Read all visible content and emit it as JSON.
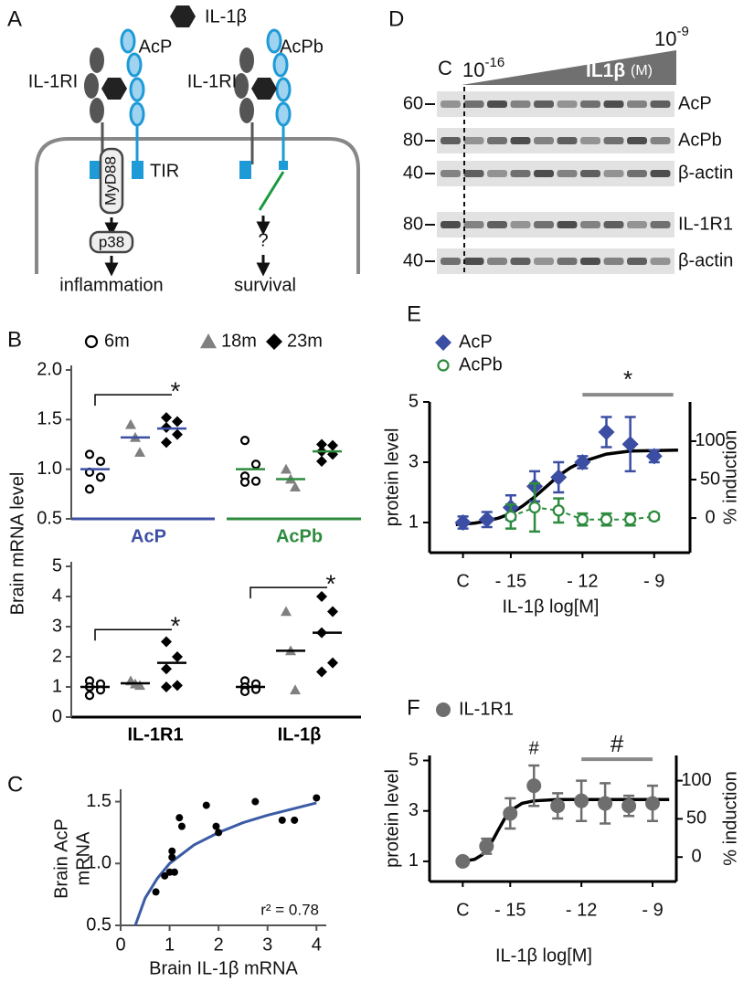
{
  "panel_labels": [
    "A",
    "B",
    "C",
    "D",
    "E",
    "F"
  ],
  "diagram": {
    "ligand": "IL-1β",
    "left": {
      "receptor": "IL-1RI",
      "coreceptor": "AcP",
      "adaptor": "MyD88",
      "domain": "TIR",
      "kinase": "p38",
      "outcome": "inflammation"
    },
    "right": {
      "receptor": "IL-1RI",
      "coreceptor": "AcPb",
      "unknown": "?",
      "outcome": "survival"
    }
  },
  "blot": {
    "control": "C",
    "low": {
      "base": "10",
      "exp": "-16"
    },
    "high": {
      "base": "10",
      "exp": "-9"
    },
    "treatment": "IL1β",
    "unit": "(M)",
    "rows": [
      {
        "marker": 60,
        "label": "AcP"
      },
      {
        "marker": 80,
        "label": "AcPb"
      },
      {
        "marker": 40,
        "label": "β-actin"
      },
      {
        "marker": 80,
        "label": "IL-1R1"
      },
      {
        "marker": 40,
        "label": "β-actin"
      }
    ]
  },
  "b_ylabel": "Brain mRNA level",
  "chart_data": [
    {
      "type": "strip",
      "label": "AcP",
      "color": "#3b4ea3",
      "ylim": [
        0.5,
        2.0
      ],
      "yticks": [
        {
          "value": 0.5,
          "label": "0.5"
        },
        {
          "value": 1,
          "label": "1.0"
        },
        {
          "value": 1.5,
          "label": "1.5"
        },
        {
          "value": 2,
          "label": "2.0"
        }
      ],
      "series": [
        {
          "name": "6m",
          "marker": "open-circle",
          "color": "#000000",
          "values": [
            1.15,
            1.08,
            0.97,
            0.92,
            0.8
          ],
          "mean": 1.0
        },
        {
          "name": "18m",
          "marker": "triangle",
          "color": "#808080",
          "values": [
            1.45,
            1.32,
            1.17
          ],
          "mean": 1.32
        },
        {
          "name": "23m",
          "marker": "diamond",
          "color": "#000000",
          "values": [
            1.52,
            1.48,
            1.42,
            1.35,
            1.27
          ],
          "mean": 1.41
        }
      ],
      "bracket": {
        "y": 1.75,
        "text": "*"
      }
    },
    {
      "type": "strip",
      "label": "AcPb",
      "color": "#2e8b3e",
      "ylim": [
        0.5,
        2.0
      ],
      "series": [
        {
          "marker": "open-circle",
          "color": "#000000",
          "values": [
            1.29,
            1.05,
            0.93,
            0.88,
            0.87
          ],
          "mean": 1.0
        },
        {
          "marker": "triangle",
          "color": "#808080",
          "values": [
            1.0,
            0.9,
            0.82
          ],
          "mean": 0.9
        },
        {
          "marker": "diamond",
          "color": "#000000",
          "values": [
            1.25,
            1.24,
            1.18,
            1.15,
            1.08
          ],
          "mean": 1.18
        }
      ]
    },
    {
      "type": "strip",
      "label": "IL-1R1",
      "color": "#000000",
      "ylim": [
        0,
        5
      ],
      "yticks": [
        0,
        1,
        2,
        3,
        4,
        5
      ],
      "series": [
        {
          "marker": "open-circle",
          "color": "#000000",
          "values": [
            1.2,
            1.1,
            1.0,
            0.9,
            0.72
          ],
          "mean": 1.0
        },
        {
          "marker": "triangle",
          "color": "#808080",
          "values": [
            1.2,
            1.1,
            1.05
          ],
          "mean": 1.12
        },
        {
          "marker": "diamond",
          "color": "#000000",
          "values": [
            2.5,
            2.0,
            1.6,
            1.05,
            1.0
          ],
          "mean": 1.8
        }
      ],
      "bracket": {
        "y": 2.9,
        "text": "*"
      }
    },
    {
      "type": "strip",
      "label": "IL-1β",
      "color": "#000000",
      "ylim": [
        0,
        5
      ],
      "series": [
        {
          "marker": "open-circle",
          "color": "#000000",
          "values": [
            1.2,
            1.1,
            1.0,
            0.92,
            0.85
          ],
          "mean": 1.0
        },
        {
          "marker": "triangle",
          "color": "#808080",
          "values": [
            3.5,
            2.2,
            0.9
          ],
          "mean": 2.2
        },
        {
          "marker": "diamond",
          "color": "#000000",
          "values": [
            4.0,
            3.5,
            2.8,
            1.8,
            1.5
          ],
          "mean": 2.8
        }
      ],
      "bracket": {
        "y": 4.3,
        "text": "*"
      }
    },
    {
      "type": "scatter",
      "xlabel": "Brain IL-1β mRNA",
      "ylabel": [
        "Brain AcP",
        "mRNA"
      ],
      "xlim": [
        0,
        4.2
      ],
      "ylim": [
        0.5,
        1.6
      ],
      "xticks": [
        0,
        1,
        2,
        3,
        4
      ],
      "yticks": [
        {
          "value": 0.5,
          "label": "0.5"
        },
        {
          "value": 1,
          "label": "1.0"
        },
        {
          "value": 1.5,
          "label": "1.5"
        }
      ],
      "color": "#000000",
      "x": [
        0.72,
        0.9,
        1.0,
        1.05,
        1.05,
        1.1,
        1.2,
        1.25,
        1.75,
        1.95,
        2.0,
        2.75,
        3.3,
        3.55,
        4.0
      ],
      "y": [
        0.77,
        0.9,
        0.93,
        1.05,
        1.1,
        0.93,
        1.37,
        1.3,
        1.47,
        1.3,
        1.25,
        1.5,
        1.35,
        1.35,
        1.53
      ],
      "fit": {
        "color": "#3b5ba5",
        "x": [
          0.3,
          0.5,
          0.75,
          1,
          1.5,
          2,
          2.5,
          3,
          3.5,
          4
        ],
        "y": [
          0.5,
          0.72,
          0.88,
          1.0,
          1.15,
          1.25,
          1.33,
          1.39,
          1.44,
          1.49
        ]
      },
      "annotation": "r² = 0.78"
    },
    {
      "type": "line",
      "xlabel": "IL-1β log[M]",
      "ylabel": "protein level",
      "y2label": "% induction",
      "xlim": [
        -18.4,
        -7.5
      ],
      "ylim": [
        0,
        5
      ],
      "yticks": [
        1,
        3,
        5
      ],
      "y2lim": [
        -45,
        151
      ],
      "y2ticks": [
        0,
        50,
        100
      ],
      "xticks": [
        {
          "value": -17,
          "label": "C"
        },
        {
          "value": -15,
          "label": "- 15"
        },
        {
          "value": -12,
          "label": "- 12"
        },
        {
          "value": -9,
          "label": "- 9"
        }
      ],
      "series": [
        {
          "name": "AcP",
          "color": "#3b4ea3",
          "marker": "diamond",
          "x": [
            -17,
            -16,
            -15,
            -14,
            -13,
            -12,
            -11,
            -10,
            -9
          ],
          "values": [
            1.0,
            1.1,
            1.5,
            2.2,
            2.5,
            3.0,
            4.0,
            3.6,
            3.2
          ],
          "errors": [
            0.2,
            0.25,
            0.4,
            0.5,
            0.5,
            0.2,
            0.5,
            0.9,
            0.2
          ]
        },
        {
          "name": "AcPb",
          "color": "#2e8b3e",
          "marker": "open-circle",
          "dashed": true,
          "x": [
            -15,
            -14,
            -13,
            -12,
            -11,
            -10,
            -9
          ],
          "values": [
            1.2,
            1.5,
            1.4,
            1.1,
            1.1,
            1.1,
            1.2
          ],
          "errors": [
            0.4,
            0.8,
            0.4,
            0.2,
            0.2,
            0.2,
            0.1
          ]
        }
      ],
      "fit": {
        "color": "#000000",
        "x": [
          -17.3,
          -16.5,
          -16,
          -15.5,
          -15,
          -14.5,
          -14,
          -13.5,
          -13,
          -12.5,
          -12,
          -11,
          -10,
          -8
        ],
        "y": [
          0.93,
          0.98,
          1.05,
          1.15,
          1.3,
          1.55,
          1.85,
          2.2,
          2.55,
          2.82,
          3.02,
          3.27,
          3.37,
          3.4
        ]
      },
      "bars": [
        {
          "x": [
            -12,
            -8.2
          ],
          "y": 5.24,
          "text": "*"
        }
      ]
    },
    {
      "type": "line",
      "xlabel": "IL-1β log[M]",
      "ylabel": "protein level",
      "y2label": "% induction",
      "xlim": [
        -18.4,
        -8
      ],
      "ylim": [
        0.2,
        5.2
      ],
      "yticks": [
        1,
        3,
        5
      ],
      "y2lim": [
        -32,
        133
      ],
      "y2ticks": [
        0,
        50,
        100
      ],
      "xticks": [
        {
          "value": -17,
          "label": "C"
        },
        {
          "value": -15,
          "label": "- 15"
        },
        {
          "value": -12,
          "label": "- 12"
        },
        {
          "value": -9,
          "label": "- 9"
        }
      ],
      "series": [
        {
          "name": "IL-1R1",
          "color": "#6e6e6e",
          "marker": "circle",
          "x": [
            -17,
            -16,
            -15,
            -14,
            -13,
            -12,
            -11,
            -10,
            -9
          ],
          "values": [
            1.0,
            1.6,
            2.9,
            4.0,
            3.2,
            3.4,
            3.3,
            3.2,
            3.3
          ],
          "errors": [
            0.05,
            0.3,
            0.6,
            0.8,
            0.5,
            0.8,
            0.8,
            0.4,
            0.7
          ]
        }
      ],
      "fit": {
        "color": "#000000",
        "x": [
          -17,
          -16.5,
          -16.2,
          -16,
          -15.7,
          -15.5,
          -15.2,
          -15,
          -14.5,
          -14,
          -13,
          -8.3
        ],
        "y": [
          1.0,
          1.08,
          1.25,
          1.45,
          1.9,
          2.25,
          2.75,
          3.0,
          3.3,
          3.4,
          3.45,
          3.45
        ]
      },
      "annotations": [
        {
          "x": -14,
          "y": 5.45,
          "text": "#"
        }
      ],
      "bars": [
        {
          "x": [
            -12,
            -9
          ],
          "y": 5.05,
          "text": "#"
        }
      ]
    }
  ]
}
